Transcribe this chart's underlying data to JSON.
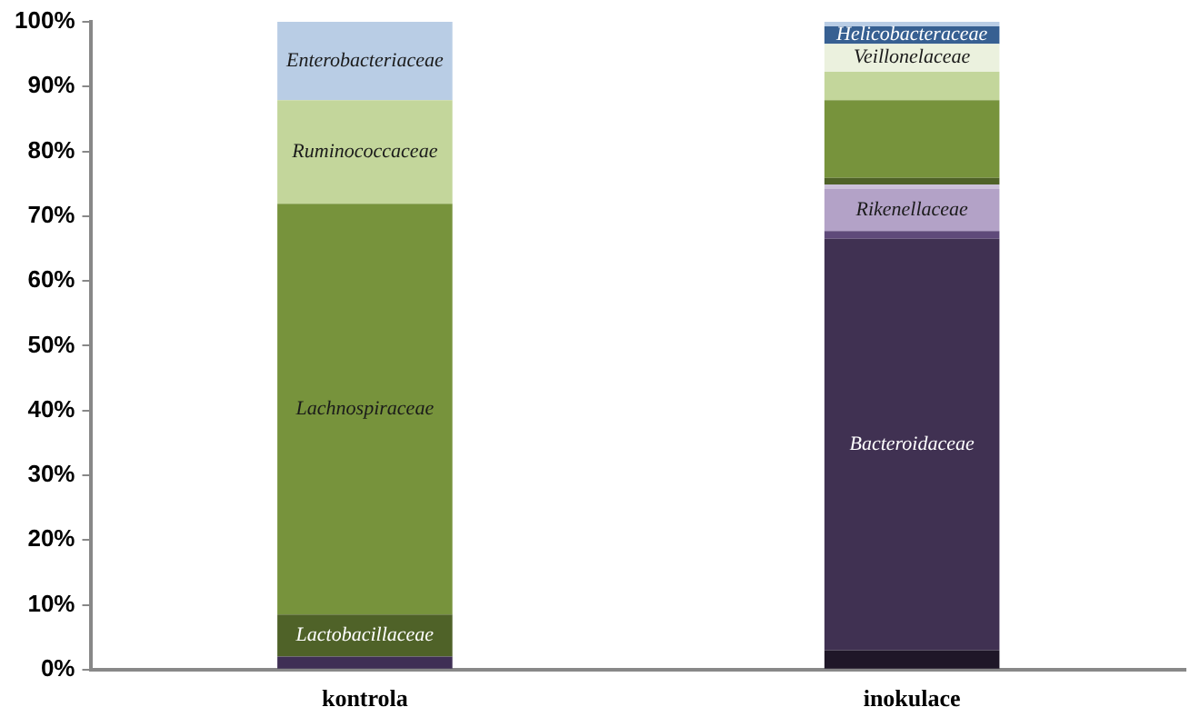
{
  "chart_data": {
    "type": "bar",
    "stacked": true,
    "categories": [
      "kontrola",
      "inokulace"
    ],
    "ylim": [
      0,
      100
    ],
    "yticks": [
      {
        "value": 0,
        "label": "0%"
      },
      {
        "value": 10,
        "label": "10%"
      },
      {
        "value": 20,
        "label": "20%"
      },
      {
        "value": 30,
        "label": "30%"
      },
      {
        "value": 40,
        "label": "40%"
      },
      {
        "value": 50,
        "label": "50%"
      },
      {
        "value": 60,
        "label": "60%"
      },
      {
        "value": 70,
        "label": "70%"
      },
      {
        "value": 80,
        "label": "80%"
      },
      {
        "value": 90,
        "label": "90%"
      },
      {
        "value": 100,
        "label": "100%"
      }
    ],
    "grid": false,
    "legend": false,
    "series": [
      {
        "color": "#3f2f55",
        "values": [
          2,
          null
        ]
      },
      {
        "name": "Lactobacillaceae",
        "color": "#4f6228",
        "values": [
          6.5,
          null
        ]
      },
      {
        "name": "Lachnospiraceae",
        "color": "#77933c",
        "values": [
          63.4,
          null
        ]
      },
      {
        "name": "Ruminococcaceae",
        "color": "#c3d69b",
        "values": [
          16,
          null
        ]
      },
      {
        "name": "Enterobacteriaceae",
        "color": "#b9cde5",
        "values": [
          12.1,
          null
        ]
      },
      {
        "color": "#1f1728",
        "values": [
          null,
          3
        ]
      },
      {
        "name": "Bacteroidaceae",
        "color": "#403152",
        "values": [
          null,
          63.5
        ]
      },
      {
        "color": "#5f4a7a",
        "values": [
          null,
          1.2
        ]
      },
      {
        "name": "Rikenellaceae",
        "color": "#b3a2c7",
        "values": [
          null,
          6.5
        ]
      },
      {
        "color": "#ccc1da",
        "values": [
          null,
          0.7
        ]
      },
      {
        "color": "#4f6228",
        "values": [
          null,
          1
        ]
      },
      {
        "color": "#77933c",
        "values": [
          null,
          12
        ]
      },
      {
        "color": "#c3d69b",
        "values": [
          null,
          4.4
        ]
      },
      {
        "name": "Veillonelaceae",
        "color": "#ebf1de",
        "values": [
          null,
          4.3
        ]
      },
      {
        "name": "Helicobacteraceae",
        "color": "#376092",
        "values": [
          null,
          2.7
        ]
      },
      {
        "color": "#b9cde5",
        "values": [
          null,
          0.7
        ]
      }
    ]
  }
}
